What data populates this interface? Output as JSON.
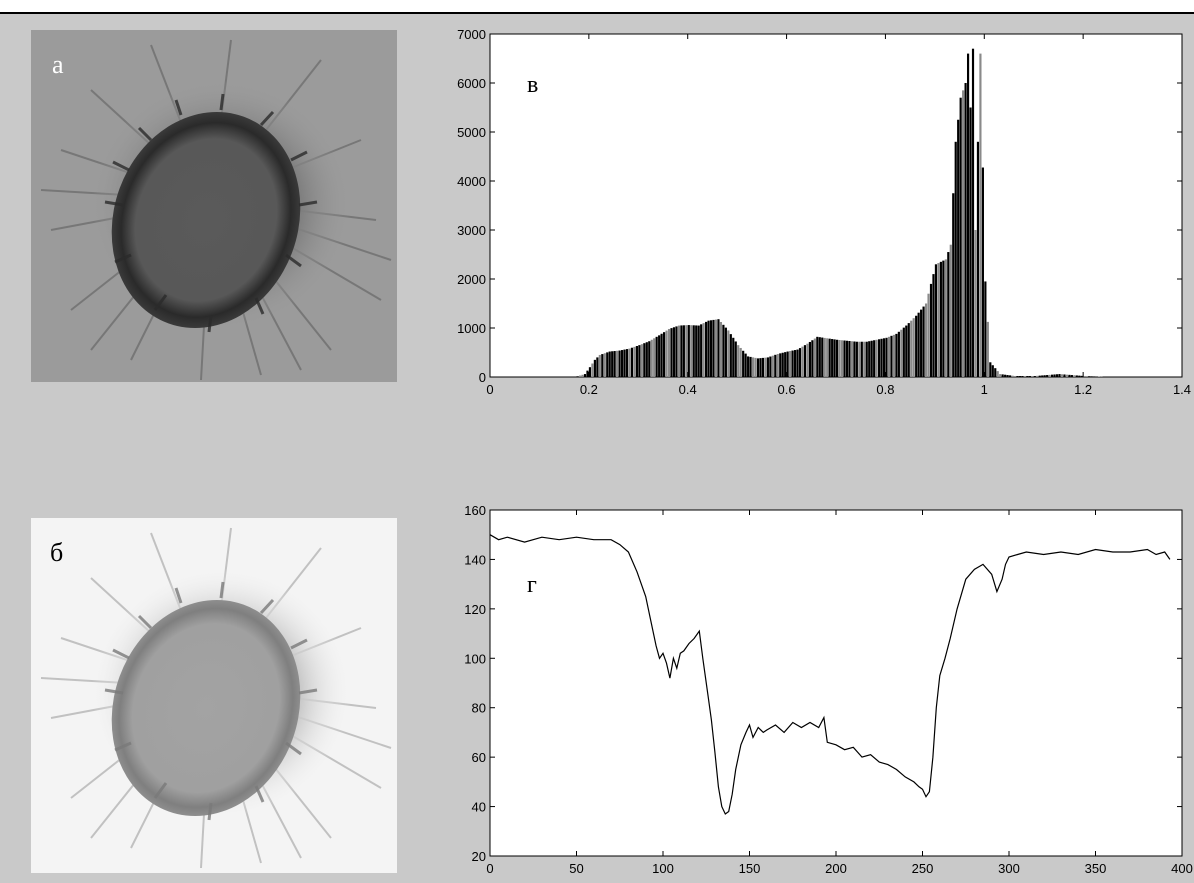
{
  "panels": {
    "a": {
      "letter": "а"
    },
    "b": {
      "letter": "б"
    }
  },
  "chart_data": [
    {
      "type": "bar",
      "title": "",
      "annotation": "в",
      "xlabel": "",
      "ylabel": "",
      "xlim": [
        0,
        1.4
      ],
      "ylim": [
        0,
        7000
      ],
      "xticks": [
        0,
        0.2,
        0.4,
        0.6,
        0.8,
        1,
        1.2,
        1.4
      ],
      "xtick_labels": [
        "0",
        "0.2",
        "0.4",
        "0.6",
        "0.8",
        "1",
        "1.2",
        "1.4"
      ],
      "yticks": [
        0,
        1000,
        2000,
        3000,
        4000,
        5000,
        6000,
        7000
      ],
      "ytick_labels": [
        "0",
        "1000",
        "2000",
        "3000",
        "4000",
        "5000",
        "6000",
        "7000"
      ],
      "profile": {
        "x": [
          0.17,
          0.19,
          0.2,
          0.21,
          0.22,
          0.24,
          0.26,
          0.28,
          0.3,
          0.32,
          0.34,
          0.36,
          0.38,
          0.4,
          0.42,
          0.44,
          0.46,
          0.48,
          0.5,
          0.52,
          0.54,
          0.56,
          0.58,
          0.6,
          0.62,
          0.64,
          0.66,
          0.68,
          0.7,
          0.72,
          0.74,
          0.76,
          0.78,
          0.8,
          0.82,
          0.84,
          0.86,
          0.88,
          0.9,
          0.92,
          0.93,
          0.94,
          0.95,
          0.96,
          0.965,
          0.97,
          0.975,
          0.98,
          0.99,
          1.0,
          1.01,
          1.03,
          1.06,
          1.1,
          1.15,
          1.2,
          1.25
        ],
        "y": [
          0,
          60,
          200,
          350,
          450,
          520,
          540,
          580,
          650,
          730,
          850,
          980,
          1050,
          1060,
          1050,
          1150,
          1180,
          950,
          650,
          420,
          380,
          400,
          470,
          520,
          560,
          680,
          820,
          790,
          760,
          740,
          720,
          720,
          760,
          800,
          880,
          1050,
          1250,
          1500,
          2300,
          2400,
          2700,
          4800,
          5700,
          6000,
          6600,
          5500,
          6700,
          3000,
          6600,
          1950,
          300,
          60,
          20,
          20,
          60,
          20,
          0
        ],
        "bin_width": 0.005
      }
    },
    {
      "type": "line",
      "title": "",
      "annotation": "г",
      "xlabel": "",
      "ylabel": "",
      "xlim": [
        0,
        400
      ],
      "ylim": [
        20,
        160
      ],
      "xticks": [
        0,
        50,
        100,
        150,
        200,
        250,
        300,
        350,
        400
      ],
      "xtick_labels": [
        "0",
        "50",
        "100",
        "150",
        "200",
        "250",
        "300",
        "350",
        "400"
      ],
      "yticks": [
        20,
        40,
        60,
        80,
        100,
        120,
        140,
        160
      ],
      "ytick_labels": [
        "20",
        "40",
        "60",
        "80",
        "100",
        "120",
        "140",
        "160"
      ],
      "series": [
        {
          "x": [
            0,
            5,
            10,
            20,
            30,
            40,
            50,
            60,
            70,
            75,
            80,
            85,
            90,
            93,
            96,
            98,
            100,
            102,
            104,
            106,
            108,
            110,
            112,
            115,
            118,
            121,
            123,
            126,
            128,
            130,
            132,
            134,
            136,
            138,
            140,
            142,
            145,
            148,
            150,
            152,
            155,
            158,
            160,
            165,
            170,
            175,
            180,
            185,
            190,
            193,
            195,
            200,
            205,
            210,
            215,
            220,
            225,
            230,
            235,
            240,
            245,
            248,
            250,
            252,
            254,
            256,
            258,
            260,
            263,
            266,
            270,
            275,
            280,
            285,
            290,
            293,
            296,
            298,
            300,
            305,
            310,
            320,
            330,
            340,
            350,
            360,
            370,
            380,
            385,
            390,
            393
          ],
          "y": [
            150,
            148,
            149,
            147,
            149,
            148,
            149,
            148,
            148,
            146,
            143,
            135,
            125,
            115,
            105,
            100,
            102,
            98,
            92,
            100,
            96,
            102,
            103,
            106,
            108,
            111,
            100,
            85,
            75,
            62,
            48,
            40,
            37,
            38,
            45,
            55,
            65,
            70,
            73,
            68,
            72,
            70,
            71,
            73,
            70,
            74,
            72,
            74,
            72,
            76,
            66,
            65,
            63,
            64,
            60,
            61,
            58,
            57,
            55,
            52,
            50,
            48,
            47,
            44,
            46,
            60,
            80,
            93,
            100,
            108,
            120,
            132,
            136,
            138,
            134,
            127,
            132,
            138,
            141,
            142,
            143,
            142,
            143,
            142,
            144,
            143,
            143,
            144,
            142,
            143,
            140
          ]
        }
      ]
    }
  ]
}
